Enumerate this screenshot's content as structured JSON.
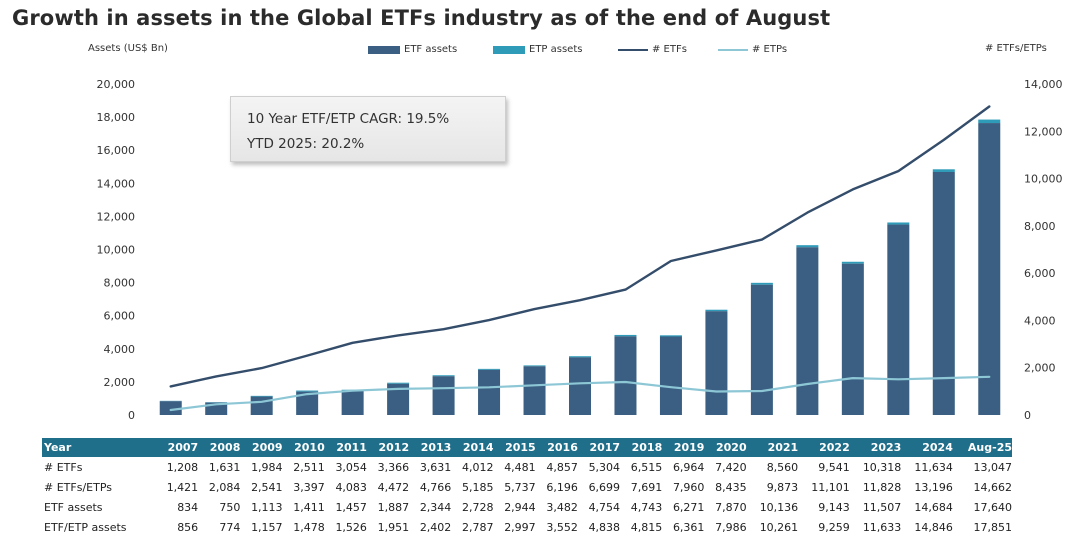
{
  "title": "Growth in assets in the Global ETFs industry as of the end of August",
  "left_axis_caption": "Assets (US$ Bn)",
  "right_axis_caption": "# ETFs/ETPs",
  "legend": {
    "etf_assets": "ETF assets",
    "etp_assets": "ETP assets",
    "num_etfs": "# ETFs",
    "num_etps": "# ETPs"
  },
  "colors": {
    "etf_bar": "#3a5f82",
    "etp_bar": "#2e9bb8",
    "etf_line": "#344d6b",
    "etp_line": "#8dc7d6",
    "table_header": "#1f6e8a"
  },
  "annotation": {
    "line1": "10 Year ETF/ETP CAGR: 19.5%",
    "line2": "YTD 2025: 20.2%"
  },
  "chart_data": {
    "type": "bar",
    "categories": [
      "2007",
      "2008",
      "2009",
      "2010",
      "2011",
      "2012",
      "2013",
      "2014",
      "2015",
      "2016",
      "2017",
      "2018",
      "2019",
      "2020",
      "2021",
      "2022",
      "2023",
      "2024",
      "Aug-25"
    ],
    "left_ylim": [
      0,
      20000
    ],
    "left_ticks": [
      "0",
      "2,000",
      "4,000",
      "6,000",
      "8,000",
      "10,000",
      "12,000",
      "14,000",
      "16,000",
      "18,000",
      "20,000"
    ],
    "right_ylim": [
      0,
      14000
    ],
    "right_ticks": [
      "0",
      "2,000",
      "4,000",
      "6,000",
      "8,000",
      "10,000",
      "12,000",
      "14,000"
    ],
    "series": [
      {
        "name": "ETF assets",
        "kind": "bar",
        "axis": "left",
        "values": [
          834,
          750,
          1113,
          1411,
          1457,
          1887,
          2344,
          2728,
          2944,
          3482,
          4754,
          4743,
          6271,
          7870,
          10136,
          9143,
          11507,
          14684,
          17640
        ]
      },
      {
        "name": "ETP assets",
        "kind": "bar-stack",
        "axis": "left",
        "values": [
          856,
          774,
          1157,
          1478,
          1526,
          1951,
          2402,
          2787,
          2997,
          3552,
          4838,
          4815,
          6361,
          7986,
          10261,
          9259,
          11633,
          14846,
          17851
        ]
      },
      {
        "name": "# ETFs",
        "kind": "line",
        "axis": "right",
        "values": [
          1208,
          1631,
          1984,
          2511,
          3054,
          3366,
          3631,
          4012,
          4481,
          4857,
          5304,
          6515,
          6964,
          7420,
          8560,
          9541,
          10318,
          11634,
          13047
        ]
      },
      {
        "name": "# ETPs",
        "kind": "line",
        "axis": "right",
        "values": [
          213,
          453,
          557,
          886,
          1029,
          1106,
          1135,
          1173,
          1256,
          1339,
          1395,
          1176,
          996,
          1015,
          1313,
          1560,
          1510,
          1562,
          1615
        ]
      }
    ],
    "grid": false,
    "legend_position": "top"
  },
  "table": {
    "header_label": "Year",
    "years": [
      "2007",
      "2008",
      "2009",
      "2010",
      "2011",
      "2012",
      "2013",
      "2014",
      "2015",
      "2016",
      "2017",
      "2018",
      "2019",
      "2020",
      "2021",
      "2022",
      "2023",
      "2024",
      "Aug-25"
    ],
    "rows": [
      {
        "label": "# ETFs",
        "values": [
          "1,208",
          "1,631",
          "1,984",
          "2,511",
          "3,054",
          "3,366",
          "3,631",
          "4,012",
          "4,481",
          "4,857",
          "5,304",
          "6,515",
          "6,964",
          "7,420",
          "8,560",
          "9,541",
          "10,318",
          "11,634",
          "13,047"
        ]
      },
      {
        "label": "# ETFs/ETPs",
        "values": [
          "1,421",
          "2,084",
          "2,541",
          "3,397",
          "4,083",
          "4,472",
          "4,766",
          "5,185",
          "5,737",
          "6,196",
          "6,699",
          "7,691",
          "7,960",
          "8,435",
          "9,873",
          "11,101",
          "11,828",
          "13,196",
          "14,662"
        ]
      },
      {
        "label": "ETF assets",
        "values": [
          "834",
          "750",
          "1,113",
          "1,411",
          "1,457",
          "1,887",
          "2,344",
          "2,728",
          "2,944",
          "3,482",
          "4,754",
          "4,743",
          "6,271",
          "7,870",
          "10,136",
          "9,143",
          "11,507",
          "14,684",
          "17,640"
        ]
      },
      {
        "label": "ETF/ETP assets",
        "values": [
          "856",
          "774",
          "1,157",
          "1,478",
          "1,526",
          "1,951",
          "2,402",
          "2,787",
          "2,997",
          "3,552",
          "4,838",
          "4,815",
          "6,361",
          "7,986",
          "10,261",
          "9,259",
          "11,633",
          "14,846",
          "17,851"
        ]
      }
    ]
  }
}
